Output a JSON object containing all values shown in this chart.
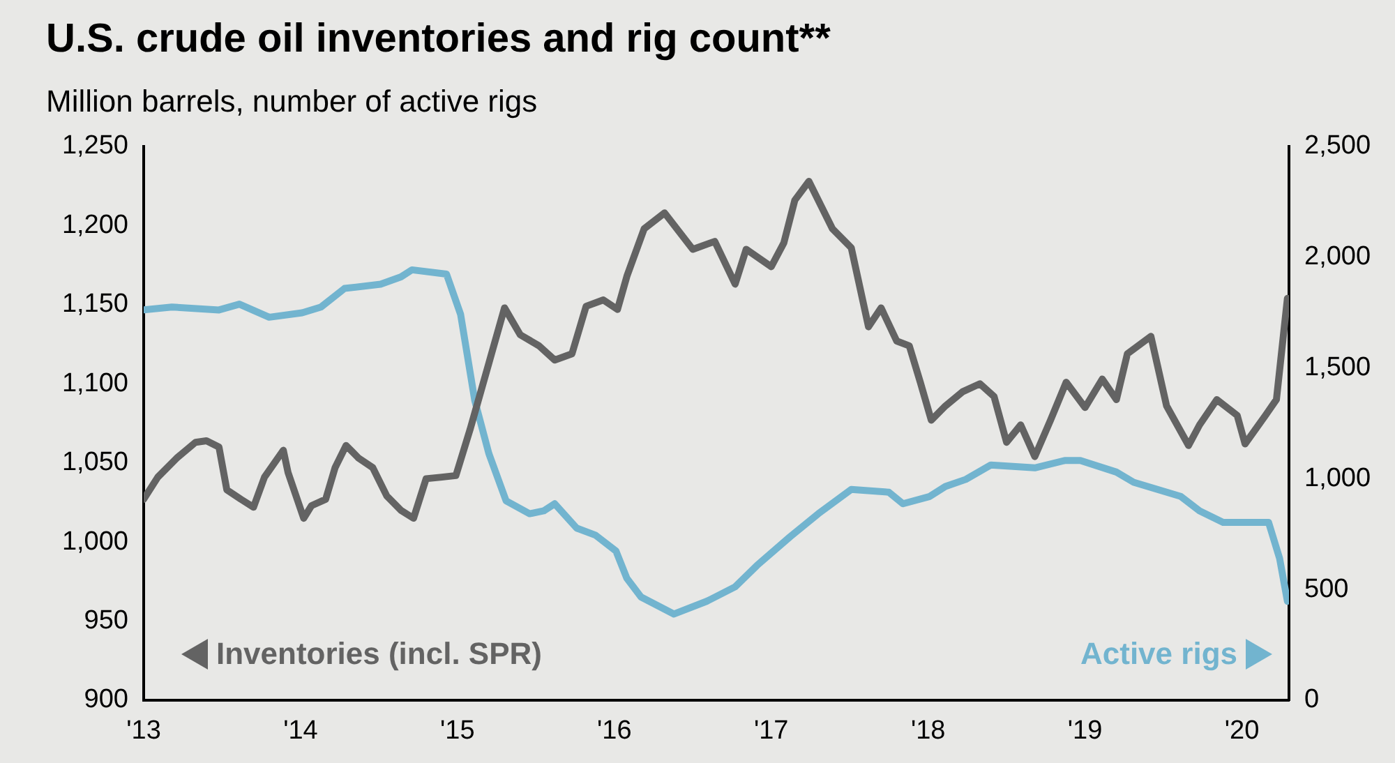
{
  "chart_data": {
    "type": "line",
    "title": "U.S. crude oil inventories and rig count**",
    "subtitle": "Million barrels, number of active rigs",
    "xlim": [
      2013,
      2020.3
    ],
    "xticks": [
      {
        "value": 2013,
        "label": "'13"
      },
      {
        "value": 2014,
        "label": "'14"
      },
      {
        "value": 2015,
        "label": "'15"
      },
      {
        "value": 2016,
        "label": "'16"
      },
      {
        "value": 2017,
        "label": "'17"
      },
      {
        "value": 2018,
        "label": "'18"
      },
      {
        "value": 2019,
        "label": "'19"
      },
      {
        "value": 2020,
        "label": "'20"
      }
    ],
    "ylim": [
      900,
      1250
    ],
    "yticks": [
      900,
      950,
      {
        "value": 1000,
        "label": "1,000"
      },
      {
        "value": 1050,
        "label": "1,050"
      },
      {
        "value": 1100,
        "label": "1,100"
      },
      {
        "value": 1150,
        "label": "1,150"
      },
      {
        "value": 1200,
        "label": "1,200"
      },
      {
        "value": 1250,
        "label": "1,250"
      }
    ],
    "y2lim": [
      0,
      2500
    ],
    "y2ticks": [
      0,
      500,
      {
        "value": 1000,
        "label": "1,000"
      },
      {
        "value": 1500,
        "label": "1,500"
      },
      {
        "value": 2000,
        "label": "2,000"
      },
      {
        "value": 2500,
        "label": "2,500"
      }
    ],
    "grid": false,
    "legend": "bottom",
    "marker": "none",
    "series": [
      {
        "name": "Inventories (incl. SPR)",
        "color": "#636363",
        "x": [
          2013.0,
          2013.09,
          2013.21,
          2013.33,
          2013.4,
          2013.48,
          2013.53,
          2013.62,
          2013.7,
          2013.77,
          2013.89,
          2013.92,
          2014.02,
          2014.07,
          2014.16,
          2014.22,
          2014.29,
          2014.37,
          2014.46,
          2014.55,
          2014.64,
          2014.72,
          2014.8,
          2014.9,
          2014.99,
          2015.08,
          2015.2,
          2015.3,
          2015.4,
          2015.52,
          2015.62,
          2015.73,
          2015.82,
          2015.93,
          2016.02,
          2016.08,
          2016.19,
          2016.32,
          2016.5,
          2016.64,
          2016.77,
          2016.84,
          2017.0,
          2017.08,
          2017.15,
          2017.24,
          2017.39,
          2017.51,
          2017.62,
          2017.7,
          2017.8,
          2017.88,
          2017.95,
          2018.02,
          2018.11,
          2018.22,
          2018.33,
          2018.42,
          2018.5,
          2018.59,
          2018.68,
          2018.78,
          2018.88,
          2019.0,
          2019.11,
          2019.2,
          2019.27,
          2019.42,
          2019.52,
          2019.66,
          2019.73,
          2019.84,
          2019.97,
          2020.02,
          2020.15,
          2020.22,
          2020.29
        ],
        "values": [
          1027,
          1041,
          1053,
          1063,
          1064,
          1060,
          1033,
          1027,
          1022,
          1041,
          1058,
          1044,
          1015,
          1023,
          1027,
          1047,
          1061,
          1053,
          1047,
          1029,
          1020,
          1015,
          1040,
          1041,
          1042,
          1071,
          1113,
          1148,
          1131,
          1124,
          1115,
          1119,
          1149,
          1153,
          1147,
          1168,
          1198,
          1208,
          1185,
          1190,
          1163,
          1185,
          1174,
          1189,
          1216,
          1228,
          1198,
          1186,
          1136,
          1148,
          1127,
          1124,
          1101,
          1077,
          1086,
          1095,
          1100,
          1092,
          1063,
          1074,
          1054,
          1077,
          1101,
          1085,
          1103,
          1090,
          1119,
          1130,
          1086,
          1061,
          1074,
          1090,
          1080,
          1062,
          1080,
          1090,
          1154
        ]
      },
      {
        "name": "Active rigs",
        "color": "#72b4cf",
        "axis": "y2",
        "x": [
          2013.0,
          2013.18,
          2013.48,
          2013.61,
          2013.8,
          2014.01,
          2014.13,
          2014.28,
          2014.51,
          2014.64,
          2014.71,
          2014.93,
          2015.02,
          2015.11,
          2015.2,
          2015.31,
          2015.46,
          2015.55,
          2015.62,
          2015.76,
          2015.88,
          2016.01,
          2016.08,
          2016.17,
          2016.38,
          2016.59,
          2016.77,
          2016.91,
          2017.12,
          2017.3,
          2017.51,
          2017.75,
          2017.84,
          2018.01,
          2018.11,
          2018.24,
          2018.4,
          2018.68,
          2018.87,
          2018.97,
          2019.2,
          2019.31,
          2019.61,
          2019.73,
          2019.88,
          2020.17,
          2020.24,
          2020.29
        ],
        "values": [
          1762,
          1775,
          1762,
          1788,
          1729,
          1749,
          1775,
          1859,
          1878,
          1911,
          1943,
          1924,
          1742,
          1354,
          1114,
          900,
          842,
          855,
          887,
          777,
          745,
          674,
          550,
          466,
          389,
          447,
          512,
          609,
          738,
          842,
          952,
          939,
          887,
          920,
          965,
          997,
          1062,
          1049,
          1082,
          1082,
          1030,
          984,
          920,
          855,
          803,
          803,
          641,
          447
        ]
      }
    ]
  }
}
